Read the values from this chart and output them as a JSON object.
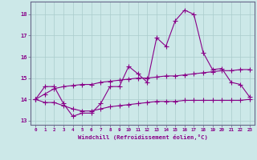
{
  "xlabel": "Windchill (Refroidissement éolien,°C)",
  "x": [
    0,
    1,
    2,
    3,
    4,
    5,
    6,
    7,
    8,
    9,
    10,
    11,
    12,
    13,
    14,
    15,
    16,
    17,
    18,
    19,
    20,
    21,
    22,
    23
  ],
  "line1": [
    14.0,
    14.6,
    14.6,
    13.8,
    13.2,
    13.35,
    13.35,
    13.8,
    14.6,
    14.6,
    15.55,
    15.2,
    14.8,
    16.9,
    16.5,
    17.7,
    18.2,
    18.0,
    16.2,
    15.4,
    15.45,
    14.8,
    14.7,
    14.1
  ],
  "line2": [
    14.0,
    13.85,
    13.85,
    13.7,
    13.55,
    13.45,
    13.45,
    13.55,
    13.65,
    13.7,
    13.75,
    13.8,
    13.85,
    13.9,
    13.9,
    13.9,
    13.95,
    13.95,
    13.95,
    13.95,
    13.95,
    13.95,
    13.95,
    14.0
  ],
  "line3": [
    14.0,
    14.25,
    14.5,
    14.6,
    14.65,
    14.7,
    14.7,
    14.8,
    14.85,
    14.9,
    14.95,
    15.0,
    15.0,
    15.05,
    15.1,
    15.1,
    15.15,
    15.2,
    15.25,
    15.3,
    15.35,
    15.35,
    15.4,
    15.4
  ],
  "ylim": [
    12.8,
    18.6
  ],
  "yticks": [
    13,
    14,
    15,
    16,
    17,
    18
  ],
  "xticks": [
    0,
    1,
    2,
    3,
    4,
    5,
    6,
    7,
    8,
    9,
    10,
    11,
    12,
    13,
    14,
    15,
    16,
    17,
    18,
    19,
    20,
    21,
    22,
    23
  ],
  "line_color": "#880088",
  "bg_color": "#cce8e8",
  "grid_color": "#aacccc",
  "axis_color": "#666688"
}
